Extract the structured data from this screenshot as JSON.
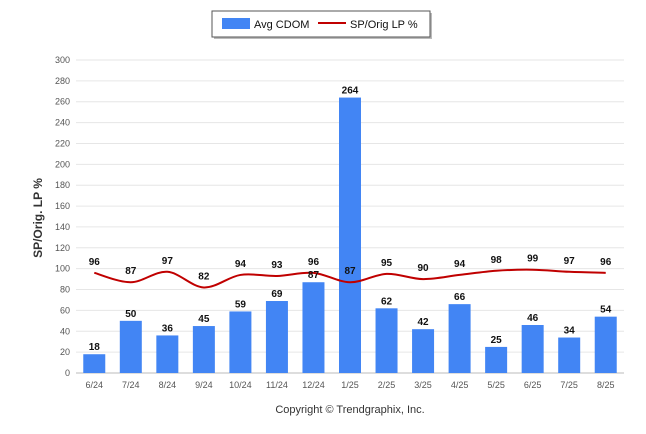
{
  "chart_data": {
    "type": "bar",
    "categories": [
      "6/24",
      "7/24",
      "8/24",
      "9/24",
      "10/24",
      "11/24",
      "12/24",
      "1/25",
      "2/25",
      "3/25",
      "4/25",
      "5/25",
      "6/25",
      "7/25",
      "8/25"
    ],
    "series": [
      {
        "name": "Avg CDOM",
        "type": "bar",
        "color": "#4285f4",
        "values": [
          18,
          50,
          36,
          45,
          59,
          69,
          87,
          264,
          62,
          42,
          66,
          25,
          46,
          34,
          54
        ]
      },
      {
        "name": "SP/Orig LP %",
        "type": "line",
        "color": "#c00000",
        "values": [
          96,
          87,
          97,
          82,
          94,
          93,
          96,
          87,
          95,
          90,
          94,
          98,
          99,
          97,
          96
        ]
      }
    ],
    "ylabel": "SP/Orig. LP %",
    "ylim": [
      0,
      300
    ],
    "yticks": [
      0,
      20,
      40,
      60,
      80,
      100,
      120,
      140,
      160,
      180,
      200,
      220,
      240,
      260,
      280,
      300
    ],
    "grid": true,
    "legend_position": "top-center"
  },
  "credit": "Copyright © Trendgraphix, Inc."
}
